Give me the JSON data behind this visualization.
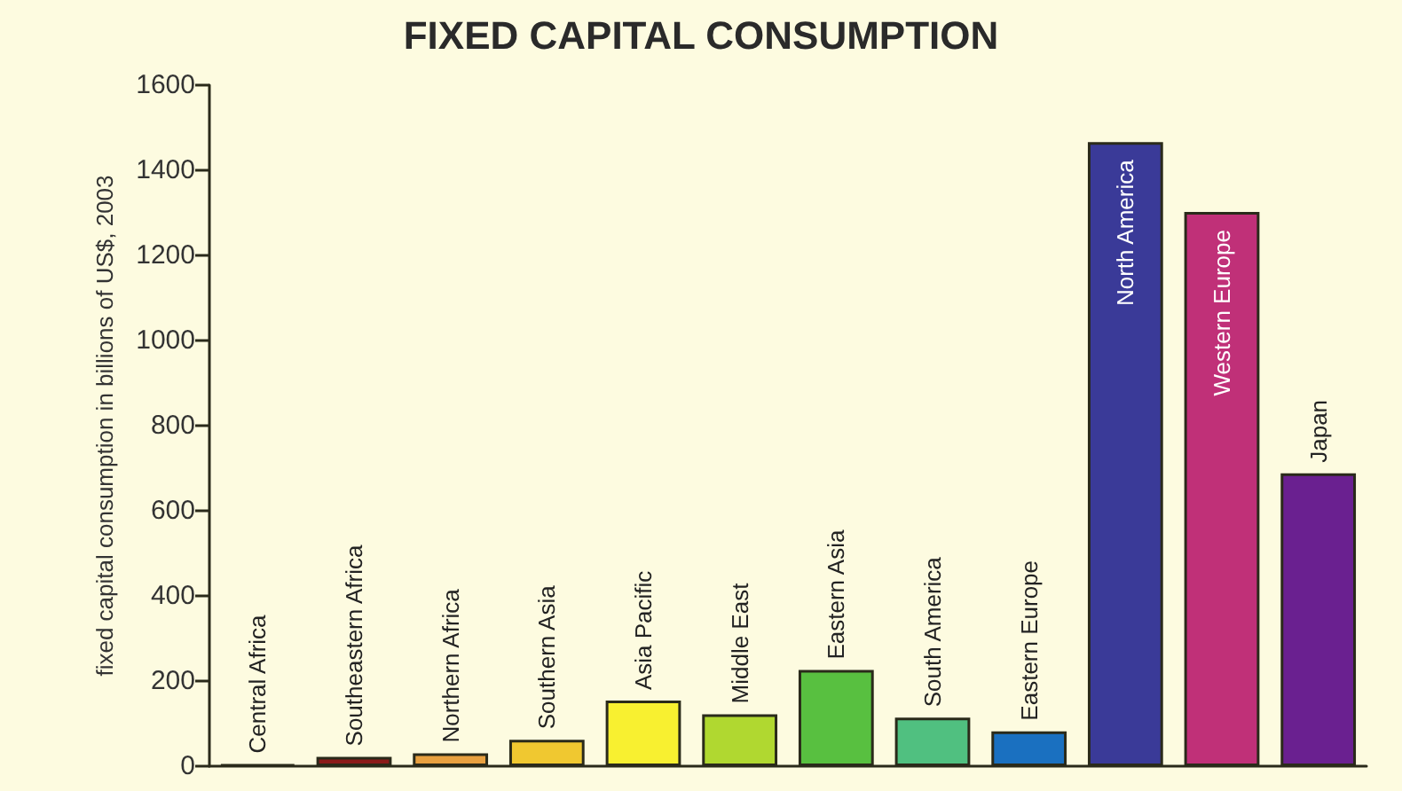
{
  "chart_data": {
    "type": "bar",
    "title": "FIXED CAPITAL CONSUMPTION",
    "ylabel": "fixed capital consumption in billions of US$, 2003",
    "categories": [
      "Central Africa",
      "Southeastern Africa",
      "Northern Africa",
      "Southern Asia",
      "Asia Pacific",
      "Middle East",
      "Eastern Asia",
      "South America",
      "Eastern Europe",
      "North America",
      "Western Europe",
      "Japan"
    ],
    "values": [
      4,
      22,
      30,
      62,
      154,
      122,
      226,
      114,
      82,
      1466,
      1302,
      688
    ],
    "colors": [
      "#8b1a1a",
      "#8b1a1a",
      "#e8a040",
      "#f0c830",
      "#f8f030",
      "#b0d830",
      "#58c040",
      "#50c080",
      "#1a70c0",
      "#3a3a98",
      "#c03078",
      "#6a2090"
    ],
    "ylim": [
      0,
      1600
    ],
    "yticks": [
      0,
      200,
      400,
      600,
      800,
      1000,
      1200,
      1400,
      1600
    ],
    "tick_labels": "y",
    "grid": false
  }
}
